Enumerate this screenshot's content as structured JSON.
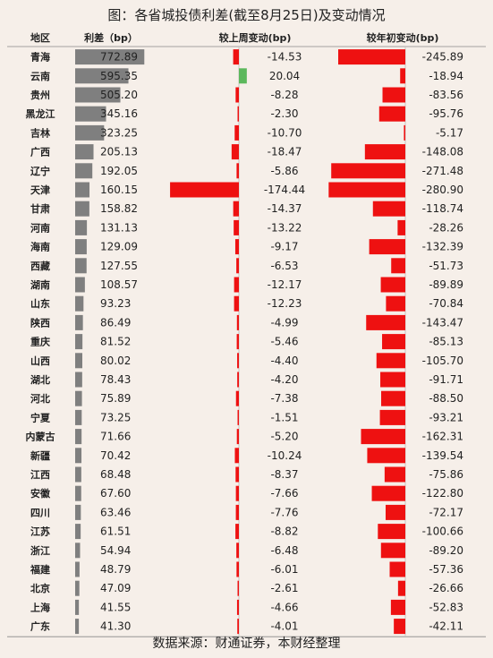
{
  "title": "图：各省城投债利差(截至8月25日)及变动情况",
  "source": "数据来源：财通证券，本财经整理",
  "colors": {
    "background": "#f6efe9",
    "spread_bar": "#7f7f7f",
    "negative_bar": "#ee1111",
    "positive_bar": "#5cb85c"
  },
  "chart_data": {
    "type": "table",
    "columns": [
      "地区",
      "利差（bp）",
      "较上周变动(bp)",
      "较年初变动(bp)"
    ],
    "rows": [
      {
        "region": "青海",
        "spread": 772.89,
        "week_change": -14.53,
        "ytd_change": -245.89
      },
      {
        "region": "云南",
        "spread": 595.35,
        "week_change": 20.04,
        "ytd_change": -18.94
      },
      {
        "region": "贵州",
        "spread": 505.2,
        "week_change": -8.28,
        "ytd_change": -83.56
      },
      {
        "region": "黑龙江",
        "spread": 345.16,
        "week_change": -2.3,
        "ytd_change": -95.76
      },
      {
        "region": "吉林",
        "spread": 323.25,
        "week_change": -10.7,
        "ytd_change": -5.17
      },
      {
        "region": "广西",
        "spread": 205.13,
        "week_change": -18.47,
        "ytd_change": -148.08
      },
      {
        "region": "辽宁",
        "spread": 192.05,
        "week_change": -5.86,
        "ytd_change": -271.48
      },
      {
        "region": "天津",
        "spread": 160.15,
        "week_change": -174.44,
        "ytd_change": -280.9
      },
      {
        "region": "甘肃",
        "spread": 158.82,
        "week_change": -14.37,
        "ytd_change": -118.74
      },
      {
        "region": "河南",
        "spread": 131.13,
        "week_change": -13.22,
        "ytd_change": -28.26
      },
      {
        "region": "海南",
        "spread": 129.09,
        "week_change": -9.17,
        "ytd_change": -132.39
      },
      {
        "region": "西藏",
        "spread": 127.55,
        "week_change": -6.53,
        "ytd_change": -51.73
      },
      {
        "region": "湖南",
        "spread": 108.57,
        "week_change": -12.17,
        "ytd_change": -89.89
      },
      {
        "region": "山东",
        "spread": 93.23,
        "week_change": -12.23,
        "ytd_change": -70.84
      },
      {
        "region": "陕西",
        "spread": 86.49,
        "week_change": -4.99,
        "ytd_change": -143.47
      },
      {
        "region": "重庆",
        "spread": 81.52,
        "week_change": -5.46,
        "ytd_change": -85.13
      },
      {
        "region": "山西",
        "spread": 80.02,
        "week_change": -4.4,
        "ytd_change": -105.7
      },
      {
        "region": "湖北",
        "spread": 78.43,
        "week_change": -4.2,
        "ytd_change": -91.71
      },
      {
        "region": "河北",
        "spread": 75.89,
        "week_change": -7.38,
        "ytd_change": -88.5
      },
      {
        "region": "宁夏",
        "spread": 73.25,
        "week_change": -1.51,
        "ytd_change": -93.21
      },
      {
        "region": "内蒙古",
        "spread": 71.66,
        "week_change": -5.2,
        "ytd_change": -162.31
      },
      {
        "region": "新疆",
        "spread": 70.42,
        "week_change": -10.24,
        "ytd_change": -139.54
      },
      {
        "region": "江西",
        "spread": 68.48,
        "week_change": -8.37,
        "ytd_change": -75.86
      },
      {
        "region": "安徽",
        "spread": 67.6,
        "week_change": -7.66,
        "ytd_change": -122.8
      },
      {
        "region": "四川",
        "spread": 63.46,
        "week_change": -7.76,
        "ytd_change": -72.17
      },
      {
        "region": "江苏",
        "spread": 61.51,
        "week_change": -8.82,
        "ytd_change": -100.66
      },
      {
        "region": "浙江",
        "spread": 54.94,
        "week_change": -6.48,
        "ytd_change": -89.2
      },
      {
        "region": "福建",
        "spread": 48.79,
        "week_change": -6.01,
        "ytd_change": -57.36
      },
      {
        "region": "北京",
        "spread": 47.09,
        "week_change": -2.61,
        "ytd_change": -26.66
      },
      {
        "region": "上海",
        "spread": 41.55,
        "week_change": -4.66,
        "ytd_change": -52.83
      },
      {
        "region": "广东",
        "spread": 41.3,
        "week_change": -4.01,
        "ytd_change": -42.11
      }
    ]
  }
}
